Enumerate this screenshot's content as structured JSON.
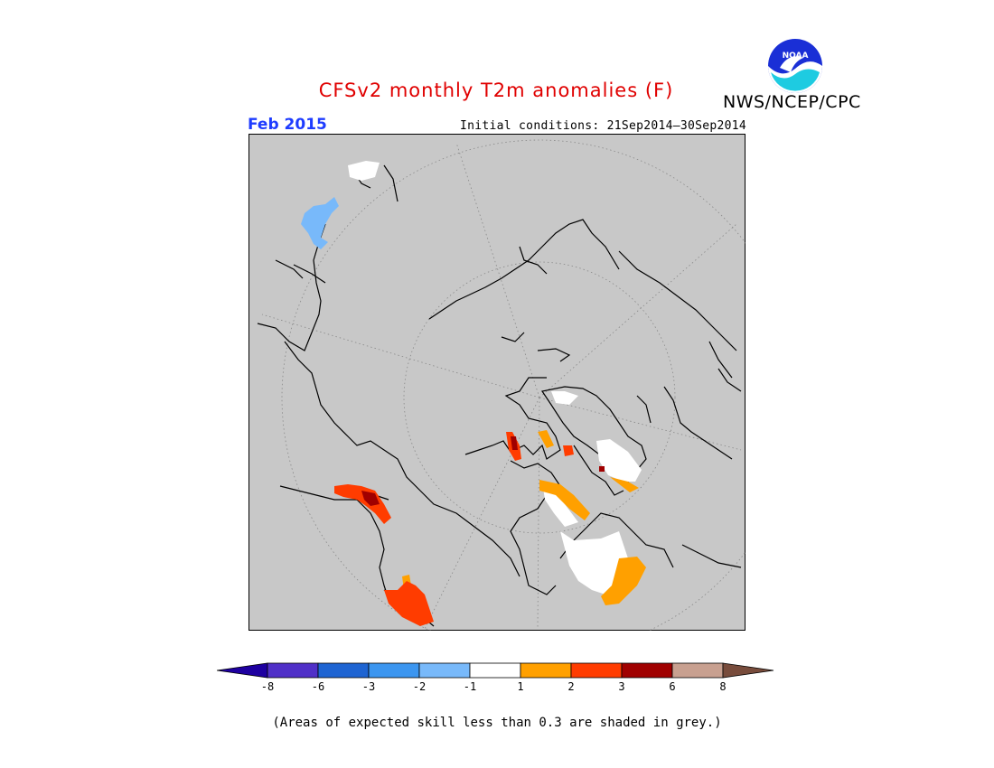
{
  "header": {
    "title": "CFSv2 monthly T2m anomalies (F)",
    "agency": "NWS/NCEP/CPC",
    "period": "Feb 2015",
    "initial_conditions": "Initial conditions: 21Sep2014–30Sep2014",
    "logo_text": "NOAA"
  },
  "colorbar": {
    "colors": [
      "#1e00a0",
      "#5030c8",
      "#1e64d2",
      "#3c96f0",
      "#78b9fa",
      "#ffffff",
      "#ffa000",
      "#ff3c00",
      "#a00000",
      "#c8a090",
      "#784c3c"
    ],
    "labels": [
      "-8",
      "-6",
      "-3",
      "-2",
      "-1",
      "1",
      "2",
      "3",
      "6",
      "8"
    ]
  },
  "note": "(Areas of expected skill less than 0.3 are shaded in grey.)",
  "legend_colors": {
    "background": "#c8c8c8",
    "positive_1_2": "#ffa000",
    "positive_2_3": "#ff3c00",
    "positive_3_6": "#a00000",
    "negative_2_1": "#78b9fa",
    "near_zero": "#ffffff"
  }
}
